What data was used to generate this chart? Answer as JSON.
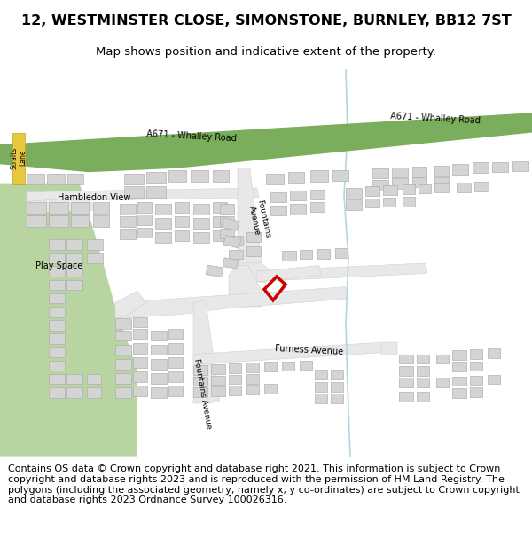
{
  "title": "12, WESTMINSTER CLOSE, SIMONSTONE, BURNLEY, BB12 7ST",
  "subtitle": "Map shows position and indicative extent of the property.",
  "title_fontsize": 11.5,
  "subtitle_fontsize": 9.5,
  "footer_text": "Contains OS data © Crown copyright and database right 2021. This information is subject to Crown copyright and database rights 2023 and is reproduced with the permission of HM Land Registry. The polygons (including the associated geometry, namely x, y co-ordinates) are subject to Crown copyright and database rights 2023 Ordnance Survey 100026316.",
  "footer_fontsize": 8.0,
  "green_road_color": "#7aad5c",
  "building_fill": "#d4d4d4",
  "building_edge": "#b0b0b0",
  "highlight_color": "#cc0000",
  "water_color": "#b0d8e0",
  "green_area_color": "#b8d4a0",
  "straits_lane_color": "#e8c840",
  "road_fill": "#e8e8e8",
  "road_edge": "#c8c8c8",
  "white": "#ffffff"
}
